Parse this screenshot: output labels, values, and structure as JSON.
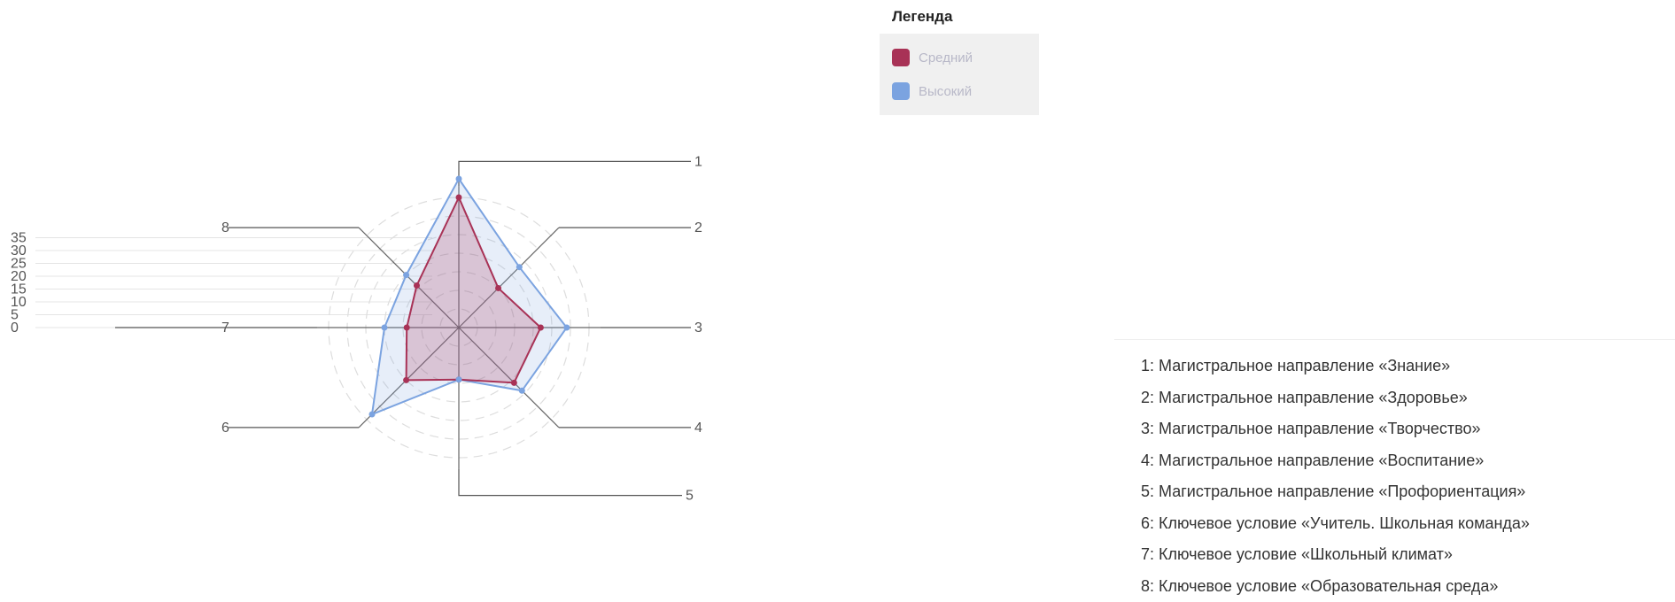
{
  "chart_data": {
    "type": "radar",
    "axes": [
      "1",
      "2",
      "3",
      "4",
      "5",
      "6",
      "7",
      "8"
    ],
    "ylim": [
      0,
      35
    ],
    "y_ticks": [
      "0",
      "5",
      "10",
      "15",
      "20",
      "25",
      "30",
      "35"
    ],
    "series": [
      {
        "name": "Средний",
        "color": "#a83256",
        "values": [
          35,
          15,
          22,
          21,
          14,
          20,
          14,
          16
        ]
      },
      {
        "name": "Высокий",
        "color": "#7ba3e0",
        "values": [
          40,
          23,
          29,
          24,
          14,
          33,
          20,
          20
        ]
      }
    ]
  },
  "legend": {
    "title": "Легенда",
    "items": [
      {
        "label": "Средний",
        "color": "#a83256"
      },
      {
        "label": "Высокий",
        "color": "#7ba3e0"
      }
    ]
  },
  "descriptions": [
    "1: Магистральное направление «Знание»",
    "2: Магистральное направление «Здоровье»",
    "3: Магистральное направление «Творчество»",
    "4: Магистральное направление «Воспитание»",
    "5: Магистральное направление «Профориентация»",
    "6: Ключевое условие «Учитель. Школьная команда»",
    "7: Ключевое условие «Школьный климат»",
    "8: Ключевое условие «Образовательная среда»"
  ]
}
